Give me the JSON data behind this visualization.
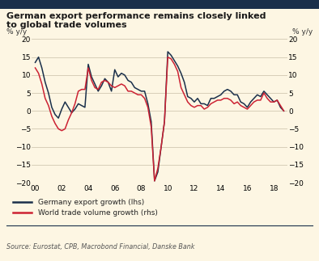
{
  "title": "German export performance remains closely linked\nto global trade volumes",
  "ylabel_left": "% y/y",
  "ylabel_right": "% y/y",
  "source": "Source: Eurostat, CPB, Macrobond Financial, Danske Bank",
  "legend_germany": "Germany export growth (lhs)",
  "legend_world": "World trade volume growth (rhs)",
  "background_color": "#fdf6e3",
  "germany_color": "#1a2f4a",
  "world_color": "#cc2233",
  "top_bar_color": "#1a2f4a",
  "ylim": [
    -20,
    20
  ],
  "yticks": [
    -20,
    -15,
    -10,
    -5,
    0,
    5,
    10,
    15,
    20
  ],
  "xtick_labels": [
    "00",
    "02",
    "04",
    "06",
    "08",
    "10",
    "12",
    "14",
    "16",
    "18"
  ],
  "x_germany": [
    2000.0,
    2000.25,
    2000.5,
    2000.75,
    2001.0,
    2001.25,
    2001.5,
    2001.75,
    2002.0,
    2002.25,
    2002.5,
    2002.75,
    2003.0,
    2003.25,
    2003.5,
    2003.75,
    2004.0,
    2004.25,
    2004.5,
    2004.75,
    2005.0,
    2005.25,
    2005.5,
    2005.75,
    2006.0,
    2006.25,
    2006.5,
    2006.75,
    2007.0,
    2007.25,
    2007.5,
    2007.75,
    2008.0,
    2008.25,
    2008.5,
    2008.75,
    2009.0,
    2009.25,
    2009.5,
    2009.75,
    2010.0,
    2010.25,
    2010.5,
    2010.75,
    2011.0,
    2011.25,
    2011.5,
    2011.75,
    2012.0,
    2012.25,
    2012.5,
    2012.75,
    2013.0,
    2013.25,
    2013.5,
    2013.75,
    2014.0,
    2014.25,
    2014.5,
    2014.75,
    2015.0,
    2015.25,
    2015.5,
    2015.75,
    2016.0,
    2016.25,
    2016.5,
    2016.75,
    2017.0,
    2017.25,
    2017.5,
    2017.75,
    2018.0,
    2018.25,
    2018.5,
    2018.75
  ],
  "y_germany": [
    13.5,
    15.0,
    12.0,
    8.0,
    5.0,
    1.0,
    -1.0,
    -2.0,
    0.5,
    2.5,
    1.0,
    -0.5,
    0.5,
    2.0,
    1.5,
    1.0,
    13.0,
    9.5,
    7.5,
    5.5,
    7.0,
    9.0,
    8.0,
    5.5,
    11.5,
    9.5,
    10.5,
    10.0,
    8.5,
    8.0,
    6.5,
    6.0,
    5.5,
    5.5,
    2.0,
    -3.0,
    -19.5,
    -17.0,
    -10.0,
    -3.0,
    16.5,
    15.5,
    14.0,
    12.5,
    10.5,
    8.0,
    4.0,
    3.5,
    2.5,
    3.5,
    2.0,
    2.0,
    1.5,
    3.5,
    3.5,
    4.0,
    4.5,
    5.5,
    6.0,
    5.5,
    4.5,
    4.5,
    2.5,
    2.0,
    1.0,
    2.5,
    3.5,
    4.5,
    4.0,
    5.5,
    4.5,
    3.5,
    2.5,
    3.0,
    1.0,
    0.0
  ],
  "x_world": [
    2000.0,
    2000.25,
    2000.5,
    2000.75,
    2001.0,
    2001.25,
    2001.5,
    2001.75,
    2002.0,
    2002.25,
    2002.5,
    2002.75,
    2003.0,
    2003.25,
    2003.5,
    2003.75,
    2004.0,
    2004.25,
    2004.5,
    2004.75,
    2005.0,
    2005.25,
    2005.5,
    2005.75,
    2006.0,
    2006.25,
    2006.5,
    2006.75,
    2007.0,
    2007.25,
    2007.5,
    2007.75,
    2008.0,
    2008.25,
    2008.5,
    2008.75,
    2009.0,
    2009.25,
    2009.5,
    2009.75,
    2010.0,
    2010.25,
    2010.5,
    2010.75,
    2011.0,
    2011.25,
    2011.5,
    2011.75,
    2012.0,
    2012.25,
    2012.5,
    2012.75,
    2013.0,
    2013.25,
    2013.5,
    2013.75,
    2014.0,
    2014.25,
    2014.5,
    2014.75,
    2015.0,
    2015.25,
    2015.5,
    2015.75,
    2016.0,
    2016.25,
    2016.5,
    2016.75,
    2017.0,
    2017.25,
    2017.5,
    2017.75,
    2018.0,
    2018.25,
    2018.5,
    2018.75
  ],
  "y_world": [
    12.0,
    10.5,
    7.5,
    3.5,
    1.5,
    -1.5,
    -3.5,
    -5.0,
    -5.5,
    -5.0,
    -2.5,
    -0.5,
    2.0,
    5.5,
    6.0,
    6.0,
    12.0,
    8.5,
    6.5,
    6.0,
    8.0,
    8.5,
    8.0,
    7.0,
    6.5,
    7.0,
    7.5,
    7.0,
    5.5,
    5.5,
    5.0,
    4.5,
    4.5,
    3.5,
    1.0,
    -4.5,
    -19.5,
    -16.0,
    -10.0,
    -3.0,
    15.0,
    14.5,
    13.0,
    11.0,
    6.5,
    4.5,
    2.5,
    1.5,
    1.0,
    1.5,
    1.5,
    0.5,
    1.0,
    2.0,
    2.5,
    3.0,
    3.0,
    3.5,
    3.5,
    3.0,
    2.0,
    2.5,
    1.5,
    1.0,
    0.5,
    1.5,
    2.5,
    3.0,
    3.0,
    5.0,
    3.5,
    2.5,
    2.5,
    3.0,
    1.5,
    0.0
  ]
}
